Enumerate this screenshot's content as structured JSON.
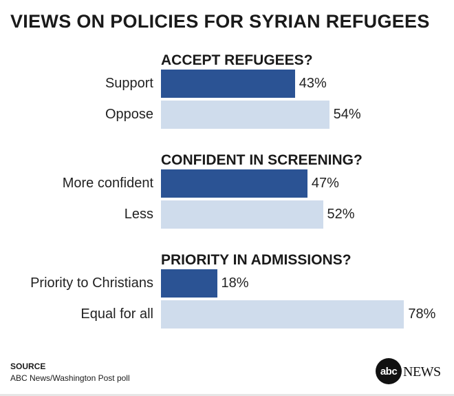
{
  "title": "VIEWS ON POLICIES FOR SYRIAN REFUGEES",
  "colors": {
    "support_series": "#2b5394",
    "oppose_series": "#cfdcec",
    "text": "#1a1a1a"
  },
  "chart_data": [
    {
      "type": "bar",
      "title": "ACCEPT REFUGEES?",
      "categories": [
        "Support",
        "Oppose"
      ],
      "values": [
        43,
        54
      ],
      "value_labels": [
        "43%",
        "54%"
      ],
      "xlim": [
        0,
        100
      ]
    },
    {
      "type": "bar",
      "title": "CONFIDENT IN SCREENING?",
      "categories": [
        "More confident",
        "Less"
      ],
      "values": [
        47,
        52
      ],
      "value_labels": [
        "47%",
        "52%"
      ],
      "xlim": [
        0,
        100
      ]
    },
    {
      "type": "bar",
      "title": "PRIORITY IN ADMISSIONS?",
      "categories": [
        "Priority to Christians",
        "Equal for all"
      ],
      "values": [
        18,
        78
      ],
      "value_labels": [
        "18%",
        "78%"
      ],
      "xlim": [
        0,
        100
      ]
    }
  ],
  "source": {
    "heading": "SOURCE",
    "text": "ABC News/Washington Post poll"
  },
  "logo": {
    "mark": "abc",
    "word": "NEWS"
  }
}
